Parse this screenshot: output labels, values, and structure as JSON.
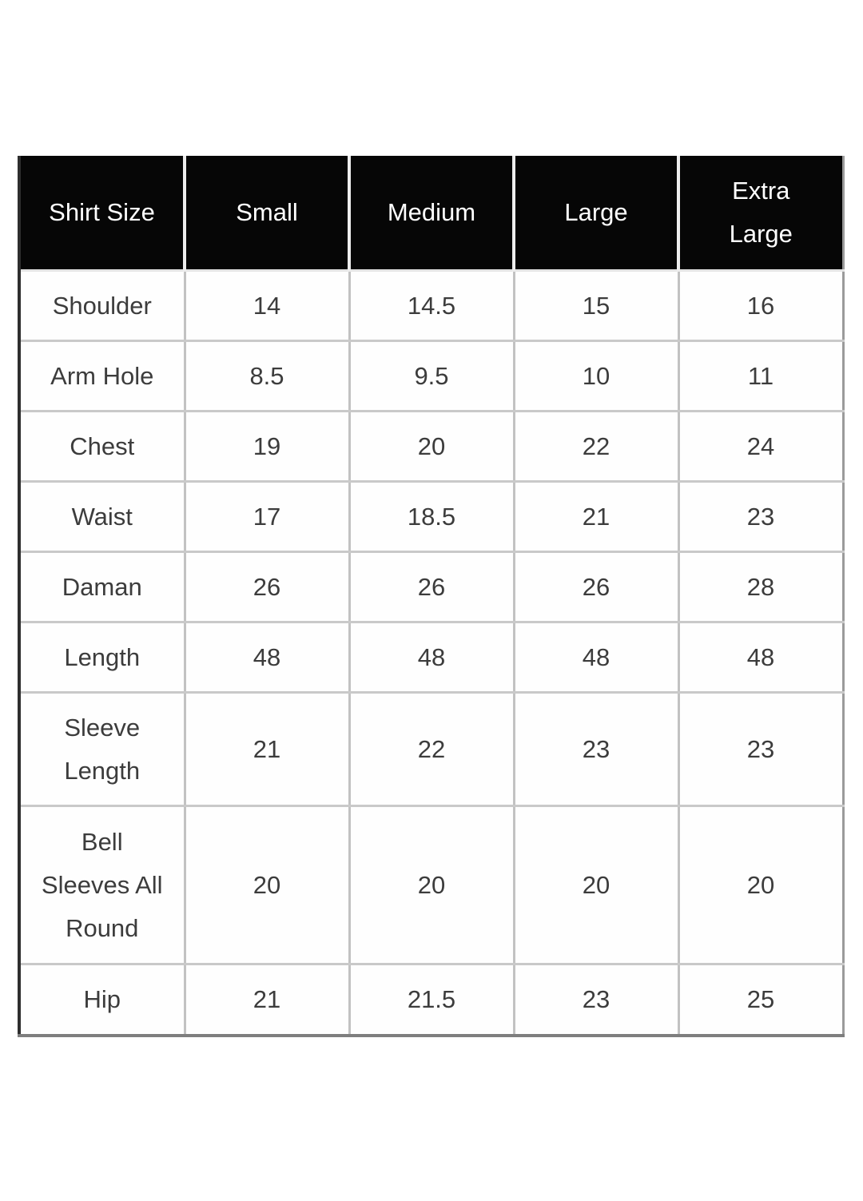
{
  "table": {
    "header": [
      "Shirt Size",
      "Small",
      "Medium",
      "Large",
      "Extra\nLarge"
    ],
    "rows": [
      {
        "label": "Shoulder",
        "values": [
          "14",
          "14.5",
          "15",
          "16"
        ]
      },
      {
        "label": "Arm Hole",
        "values": [
          "8.5",
          "9.5",
          "10",
          "11"
        ]
      },
      {
        "label": "Chest",
        "values": [
          "19",
          "20",
          "22",
          "24"
        ]
      },
      {
        "label": "Waist",
        "values": [
          "17",
          "18.5",
          "21",
          "23"
        ]
      },
      {
        "label": "Daman",
        "values": [
          "26",
          "26",
          "26",
          "28"
        ]
      },
      {
        "label": "Length",
        "values": [
          "48",
          "48",
          "48",
          "48"
        ]
      },
      {
        "label": "Sleeve\nLength",
        "values": [
          "21",
          "22",
          "23",
          "23"
        ]
      },
      {
        "label": "Bell\nSleeves All\nRound",
        "values": [
          "20",
          "20",
          "20",
          "20"
        ]
      },
      {
        "label": "Hip",
        "values": [
          "21",
          "21.5",
          "23",
          "25"
        ]
      }
    ]
  },
  "colors": {
    "header_bg": "#060606",
    "header_text": "#ffffff",
    "body_text": "#3c3c3c",
    "grid_line": "#c4c4c4",
    "outer_border_left": "#2e2e2e",
    "outer_border_bottom": "#7e7e7e",
    "page_bg": "#ffffff"
  },
  "chart_data": {
    "type": "table",
    "columns": [
      "Shirt Size",
      "Small",
      "Medium",
      "Large",
      "Extra Large"
    ],
    "rows": [
      {
        "measurement": "Shoulder",
        "values": [
          14,
          14.5,
          15,
          16
        ]
      },
      {
        "measurement": "Arm Hole",
        "values": [
          8.5,
          9.5,
          10,
          11
        ]
      },
      {
        "measurement": "Chest",
        "values": [
          19,
          20,
          22,
          24
        ]
      },
      {
        "measurement": "Waist",
        "values": [
          17,
          18.5,
          21,
          23
        ]
      },
      {
        "measurement": "Daman",
        "values": [
          26,
          26,
          26,
          28
        ]
      },
      {
        "measurement": "Length",
        "values": [
          48,
          48,
          48,
          48
        ]
      },
      {
        "measurement": "Sleeve Length",
        "values": [
          21,
          22,
          23,
          23
        ]
      },
      {
        "measurement": "Bell Sleeves All Round",
        "values": [
          20,
          20,
          20,
          20
        ]
      },
      {
        "measurement": "Hip",
        "values": [
          21,
          21.5,
          23,
          25
        ]
      }
    ],
    "layout": {
      "header_style": "black-fill-white-text",
      "grid": true,
      "legend": false
    }
  }
}
